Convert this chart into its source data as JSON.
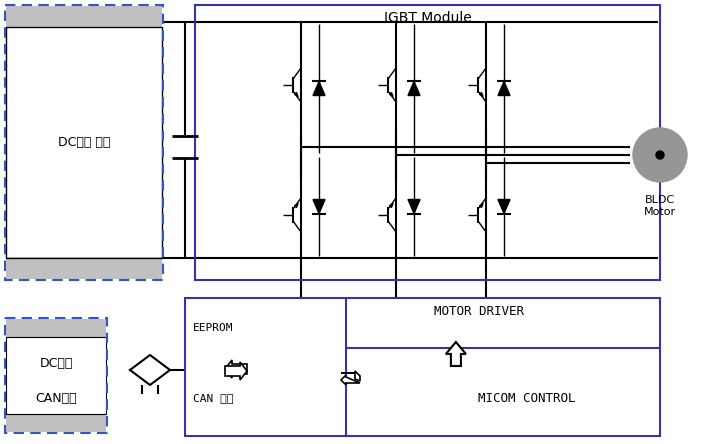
{
  "title": "IGBT Module",
  "bg_color": "#ffffff",
  "dc_supply_label": "DC전원 공급",
  "motor_driver_label": "MOTOR DRIVER",
  "eeprom_label": "EEPROM",
  "can_label": "CAN 통신",
  "micom_label": "MICOM CONTROL",
  "bldc_label": "BLDC\nMotor",
  "legend_dc": "DC전원",
  "legend_can": "CAN통신",
  "igbt_blue": "#3333aa",
  "dashed_blue": "#3355cc",
  "line_color": "#000000",
  "motor_gray": "#969696",
  "gray_bar": "#c0c0c0"
}
